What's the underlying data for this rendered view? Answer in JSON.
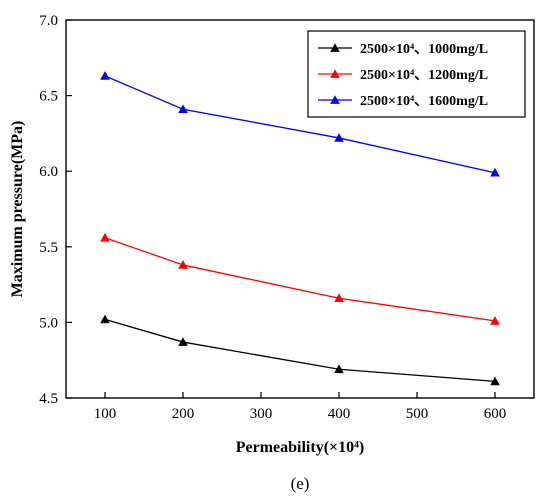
{
  "chart_data": {
    "type": "line",
    "title": "",
    "caption": "(e)",
    "xlabel": "Permeability(×10⁴)",
    "ylabel": "Maximum pressure(MPa)",
    "xlim": [
      50,
      650
    ],
    "ylim": [
      4.5,
      7.0
    ],
    "xticks": [
      100,
      200,
      300,
      400,
      500,
      600
    ],
    "yticks": [
      4.5,
      5.0,
      5.5,
      6.0,
      6.5,
      7.0
    ],
    "ytick_labels": [
      "4.5",
      "5.0",
      "5.5",
      "6.0",
      "6.5",
      "7.0"
    ],
    "grid": false,
    "legend_position": "top-right",
    "series": [
      {
        "name": "2500×10⁴、1000mg/L",
        "color": "#000000",
        "marker": "triangle",
        "x": [
          100,
          200,
          400,
          600
        ],
        "values": [
          5.02,
          4.87,
          4.69,
          4.61
        ]
      },
      {
        "name": "2500×10⁴、1200mg/L",
        "color": "#ff0000",
        "marker": "triangle",
        "x": [
          100,
          200,
          400,
          600
        ],
        "values": [
          5.56,
          5.38,
          5.16,
          5.01
        ]
      },
      {
        "name": "2500×10⁴、1600mg/L",
        "color": "#0000ff",
        "marker": "triangle",
        "x": [
          100,
          200,
          400,
          600
        ],
        "values": [
          6.63,
          6.41,
          6.22,
          5.99
        ]
      }
    ]
  }
}
